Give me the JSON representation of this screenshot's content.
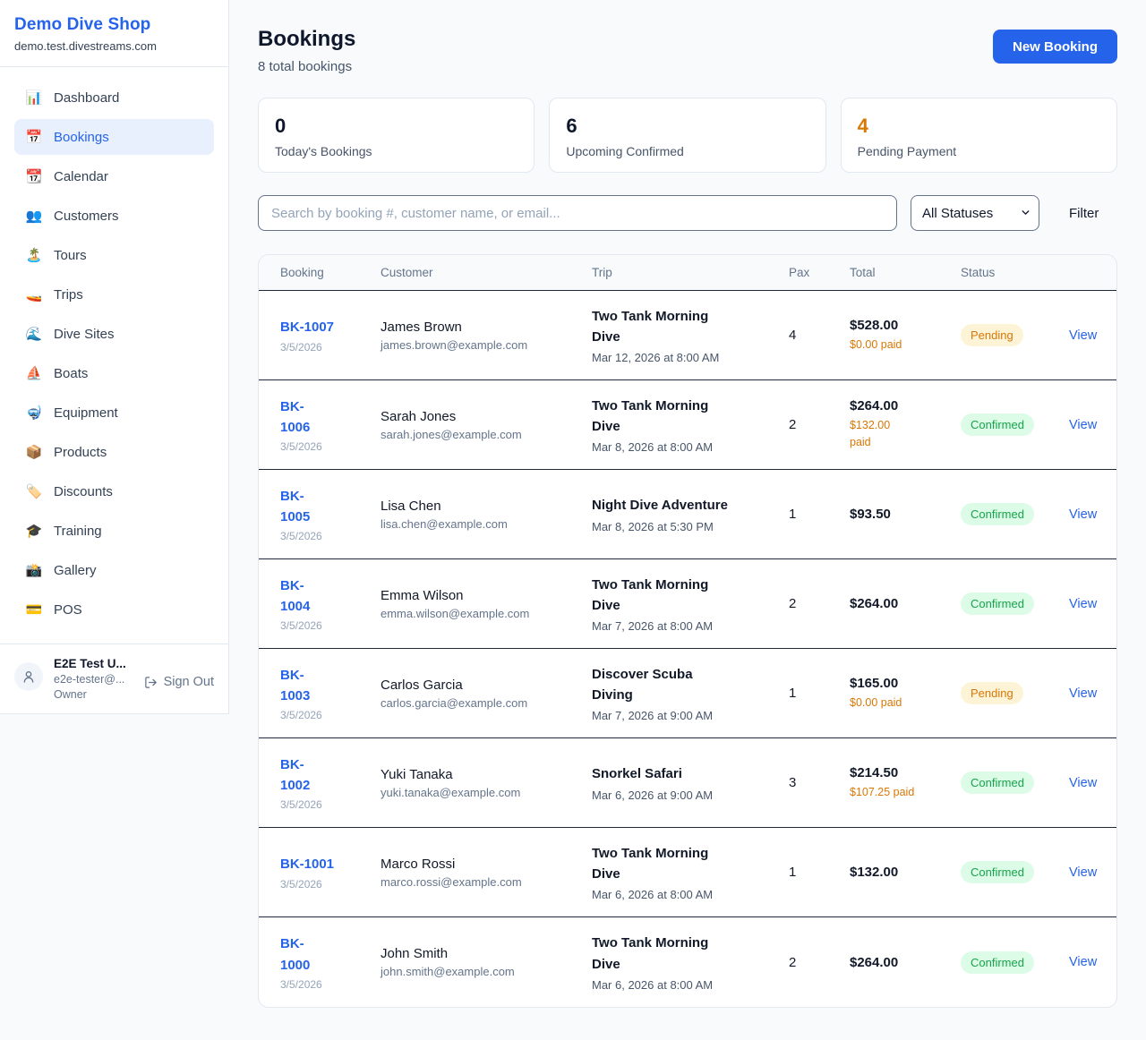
{
  "sidebar": {
    "brand": {
      "name": "Demo Dive Shop",
      "domain": "demo.test.divestreams.com"
    },
    "items": [
      {
        "label": "Dashboard",
        "glyph": "📊",
        "icon_name": "bar-chart-icon",
        "active": false
      },
      {
        "label": "Bookings",
        "glyph": "📅",
        "icon_name": "calendar-icon",
        "active": true
      },
      {
        "label": "Calendar",
        "glyph": "📆",
        "icon_name": "tear-off-calendar-icon",
        "active": false
      },
      {
        "label": "Customers",
        "glyph": "👥",
        "icon_name": "people-icon",
        "active": false
      },
      {
        "label": "Tours",
        "glyph": "🏝️",
        "icon_name": "island-icon",
        "active": false
      },
      {
        "label": "Trips",
        "glyph": "🚤",
        "icon_name": "speedboat-icon",
        "active": false
      },
      {
        "label": "Dive Sites",
        "glyph": "🌊",
        "icon_name": "wave-icon",
        "active": false
      },
      {
        "label": "Boats",
        "glyph": "⛵",
        "icon_name": "sailboat-icon",
        "active": false
      },
      {
        "label": "Equipment",
        "glyph": "🤿",
        "icon_name": "diving-mask-icon",
        "active": false
      },
      {
        "label": "Products",
        "glyph": "📦",
        "icon_name": "package-icon",
        "active": false
      },
      {
        "label": "Discounts",
        "glyph": "🏷️",
        "icon_name": "tag-icon",
        "active": false
      },
      {
        "label": "Training",
        "glyph": "🎓",
        "icon_name": "graduation-cap-icon",
        "active": false
      },
      {
        "label": "Gallery",
        "glyph": "📸",
        "icon_name": "camera-icon",
        "active": false
      },
      {
        "label": "POS",
        "glyph": "💳",
        "icon_name": "credit-card-icon",
        "active": false
      }
    ],
    "user": {
      "name": "E2E Test U...",
      "email": "e2e-tester@...",
      "role": "Owner",
      "sign_out_label": "Sign Out"
    }
  },
  "header": {
    "title": "Bookings",
    "subtitle": "8 total bookings",
    "new_booking_label": "New Booking"
  },
  "stats": [
    {
      "value": "0",
      "label": "Today's Bookings",
      "accent": false
    },
    {
      "value": "6",
      "label": "Upcoming Confirmed",
      "accent": false
    },
    {
      "value": "4",
      "label": "Pending Payment",
      "accent": true
    }
  ],
  "filters": {
    "search_placeholder": "Search by booking #, customer name, or email...",
    "status_selected": "All Statuses",
    "filter_label": "Filter"
  },
  "table": {
    "columns": [
      "Booking",
      "Customer",
      "Trip",
      "Pax",
      "Total",
      "Status"
    ],
    "view_label": "View",
    "rows": [
      {
        "booking_id": "BK-1007",
        "booking_date": "3/5/2026",
        "customer_name": "James Brown",
        "customer_email": "james.brown@example.com",
        "trip_name": "Two Tank Morning\nDive",
        "trip_datetime": "Mar 12, 2026 at 8:00 AM",
        "pax": "4",
        "total": "$528.00",
        "paid": "$0.00 paid",
        "status": "Pending"
      },
      {
        "booking_id": "BK-\n1006",
        "booking_date": "3/5/2026",
        "customer_name": "Sarah Jones",
        "customer_email": "sarah.jones@example.com",
        "trip_name": "Two Tank Morning\nDive",
        "trip_datetime": "Mar 8, 2026 at 8:00 AM",
        "pax": "2",
        "total": "$264.00",
        "paid": "$132.00\npaid",
        "status": "Confirmed"
      },
      {
        "booking_id": "BK-\n1005",
        "booking_date": "3/5/2026",
        "customer_name": "Lisa Chen",
        "customer_email": "lisa.chen@example.com",
        "trip_name": "Night Dive Adventure",
        "trip_datetime": "Mar 8, 2026 at 5:30 PM",
        "pax": "1",
        "total": "$93.50",
        "paid": null,
        "status": "Confirmed"
      },
      {
        "booking_id": "BK-\n1004",
        "booking_date": "3/5/2026",
        "customer_name": "Emma Wilson",
        "customer_email": "emma.wilson@example.com",
        "trip_name": "Two Tank Morning\nDive",
        "trip_datetime": "Mar 7, 2026 at 8:00 AM",
        "pax": "2",
        "total": "$264.00",
        "paid": null,
        "status": "Confirmed"
      },
      {
        "booking_id": "BK-\n1003",
        "booking_date": "3/5/2026",
        "customer_name": "Carlos Garcia",
        "customer_email": "carlos.garcia@example.com",
        "trip_name": "Discover Scuba\nDiving",
        "trip_datetime": "Mar 7, 2026 at 9:00 AM",
        "pax": "1",
        "total": "$165.00",
        "paid": "$0.00 paid",
        "status": "Pending"
      },
      {
        "booking_id": "BK-\n1002",
        "booking_date": "3/5/2026",
        "customer_name": "Yuki Tanaka",
        "customer_email": "yuki.tanaka@example.com",
        "trip_name": "Snorkel Safari",
        "trip_datetime": "Mar 6, 2026 at 9:00 AM",
        "pax": "3",
        "total": "$214.50",
        "paid": "$107.25 paid",
        "status": "Confirmed"
      },
      {
        "booking_id": "BK-1001",
        "booking_date": "3/5/2026",
        "customer_name": "Marco Rossi",
        "customer_email": "marco.rossi@example.com",
        "trip_name": "Two Tank Morning\nDive",
        "trip_datetime": "Mar 6, 2026 at 8:00 AM",
        "pax": "1",
        "total": "$132.00",
        "paid": null,
        "status": "Confirmed"
      },
      {
        "booking_id": "BK-\n1000",
        "booking_date": "3/5/2026",
        "customer_name": "John Smith",
        "customer_email": "john.smith@example.com",
        "trip_name": "Two Tank Morning\nDive",
        "trip_datetime": "Mar 6, 2026 at 8:00 AM",
        "pax": "2",
        "total": "$264.00",
        "paid": null,
        "status": "Confirmed"
      }
    ]
  },
  "colors": {
    "accent_blue": "#2563eb",
    "pending_text": "#d97706",
    "pending_bg": "#fdf3d7",
    "confirmed_text": "#16a34a",
    "confirmed_bg": "#dcfce7",
    "paid_orange": "#d97706"
  }
}
